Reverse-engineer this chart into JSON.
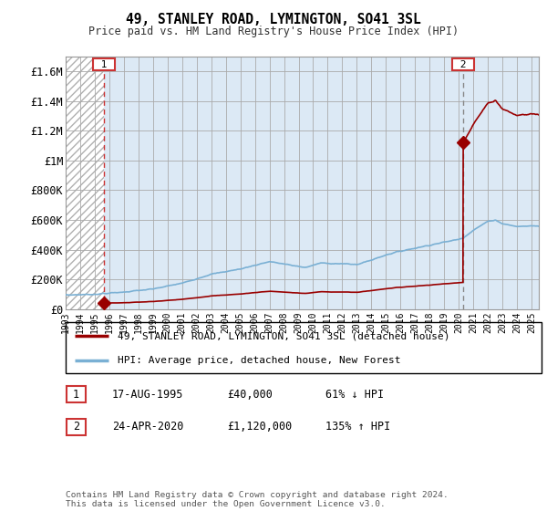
{
  "title": "49, STANLEY ROAD, LYMINGTON, SO41 3SL",
  "subtitle": "Price paid vs. HM Land Registry's House Price Index (HPI)",
  "ylabel_ticks": [
    0,
    200000,
    400000,
    600000,
    800000,
    1000000,
    1200000,
    1400000,
    1600000
  ],
  "ylabel_labels": [
    "£0",
    "£200K",
    "£400K",
    "£600K",
    "£800K",
    "£1M",
    "£1.2M",
    "£1.4M",
    "£1.6M"
  ],
  "ylim": [
    0,
    1700000
  ],
  "xlim_start": 1993.0,
  "xlim_end": 2025.5,
  "sale1_year": 1995.62,
  "sale1_price": 40000,
  "sale2_year": 2020.31,
  "sale2_price": 1120000,
  "line_color_property": "#990000",
  "line_color_hpi": "#7ab0d4",
  "marker_color": "#990000",
  "hatch_color": "#cccccc",
  "grid_color": "#cccccc",
  "bg_blue": "#dce9f5",
  "bg_hatch_color": "#bbbbbb",
  "footnote": "Contains HM Land Registry data © Crown copyright and database right 2024.\nThis data is licensed under the Open Government Licence v3.0.",
  "legend_label1": "49, STANLEY ROAD, LYMINGTON, SO41 3SL (detached house)",
  "legend_label2": "HPI: Average price, detached house, New Forest",
  "table_row1": [
    "1",
    "17-AUG-1995",
    "£40,000",
    "61% ↓ HPI"
  ],
  "table_row2": [
    "2",
    "24-APR-2020",
    "£1,120,000",
    "135% ↑ HPI"
  ],
  "xticks": [
    1993,
    1994,
    1995,
    1996,
    1997,
    1998,
    1999,
    2000,
    2001,
    2002,
    2003,
    2004,
    2005,
    2006,
    2007,
    2008,
    2009,
    2010,
    2011,
    2012,
    2013,
    2014,
    2015,
    2016,
    2017,
    2018,
    2019,
    2020,
    2021,
    2022,
    2023,
    2024,
    2025
  ]
}
